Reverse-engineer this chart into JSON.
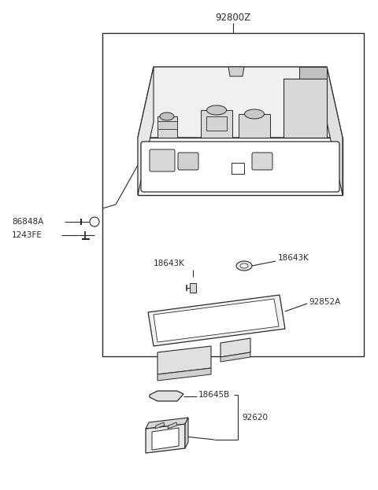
{
  "bg_color": "#ffffff",
  "line_color": "#2a2a2a",
  "text_color": "#2a2a2a",
  "fig_width": 4.8,
  "fig_height": 6.23,
  "dpi": 100,
  "parts": {
    "92800Z": {
      "label": "92800Z"
    },
    "86848A": {
      "label": "86848A"
    },
    "1243FE": {
      "label": "1243FE"
    },
    "18643K_left": {
      "label": "18643K"
    },
    "18643K_right": {
      "label": "18643K"
    },
    "92852A": {
      "label": "92852A"
    },
    "18645B": {
      "label": "18645B"
    },
    "92620": {
      "label": "92620"
    }
  }
}
